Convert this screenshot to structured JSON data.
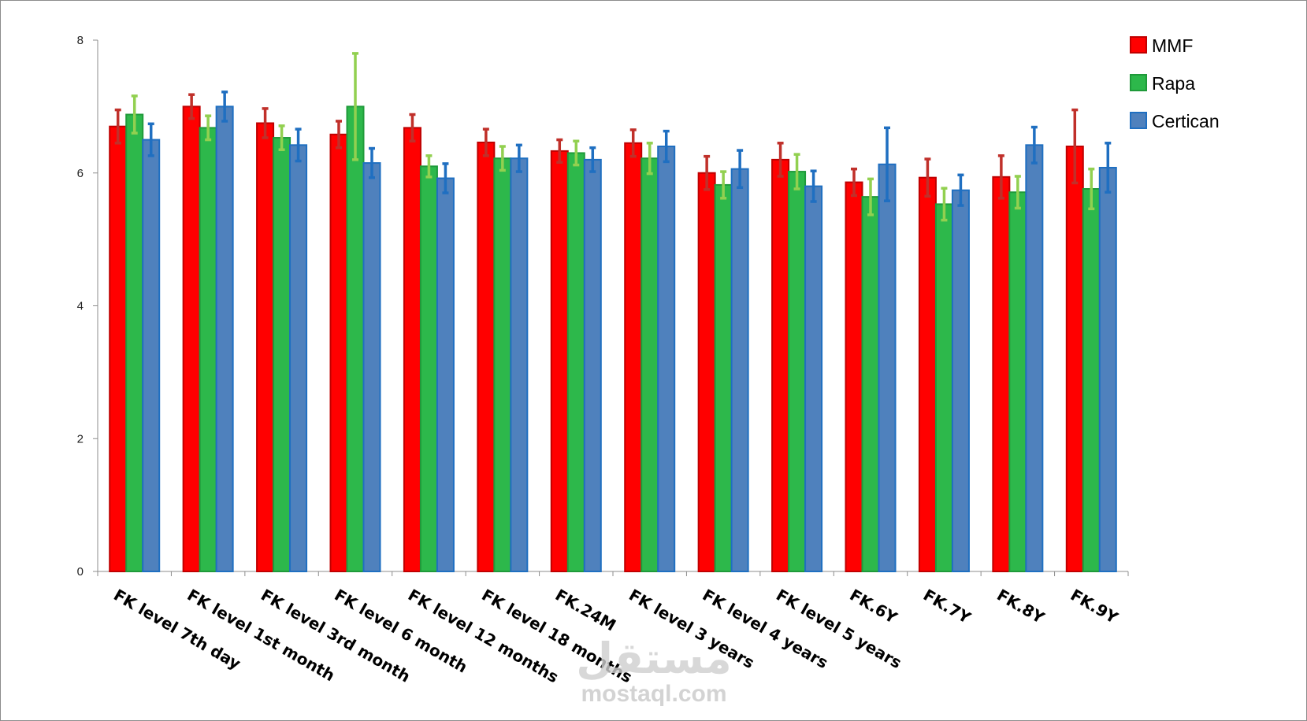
{
  "watermark": {
    "logo": "مستقل",
    "site": "mostaql.com"
  },
  "chart_data": {
    "type": "bar",
    "title": "",
    "xlabel": "",
    "ylabel": "",
    "ylim": [
      0,
      8
    ],
    "yticks": [
      0,
      2,
      4,
      6,
      8
    ],
    "grid": false,
    "legend_position": "top-right",
    "categories": [
      "FK level 7th day",
      "FK level 1st month",
      "FK level 3rd month",
      "FK level 6 month",
      "FK level 12 months",
      "FK level 18 months",
      "FK.24M",
      "FK level 3 years",
      "FK level 4 years",
      "FK level 5 years",
      "FK.6Y",
      "FK.7Y",
      "FK.8Y",
      "FK.9Y"
    ],
    "series": [
      {
        "name": "MMF",
        "color": "#ff0000",
        "border": "#c00000",
        "error_color": "#c0302a",
        "values": [
          6.7,
          7.0,
          6.75,
          6.58,
          6.68,
          6.46,
          6.33,
          6.45,
          6.0,
          6.2,
          5.86,
          5.93,
          5.94,
          6.4
        ],
        "errors": [
          0.25,
          0.18,
          0.22,
          0.2,
          0.2,
          0.2,
          0.17,
          0.2,
          0.25,
          0.25,
          0.2,
          0.28,
          0.32,
          0.55
        ]
      },
      {
        "name": "Rapa",
        "color": "#2db84b",
        "border": "#1f9a3a",
        "error_color": "#92d050",
        "values": [
          6.88,
          6.68,
          6.53,
          7.0,
          6.1,
          6.22,
          6.3,
          6.22,
          5.82,
          6.02,
          5.64,
          5.53,
          5.71,
          5.76
        ],
        "errors": [
          0.28,
          0.18,
          0.18,
          0.8,
          0.16,
          0.18,
          0.18,
          0.23,
          0.2,
          0.26,
          0.27,
          0.24,
          0.24,
          0.3
        ]
      },
      {
        "name": "Certican",
        "color": "#4f81bd",
        "border": "#1f6fc1",
        "error_color": "#1f6fc1",
        "values": [
          6.5,
          7.0,
          6.42,
          6.15,
          5.92,
          6.22,
          6.2,
          6.4,
          6.06,
          5.8,
          6.13,
          5.74,
          6.42,
          6.08
        ],
        "errors": [
          0.24,
          0.22,
          0.24,
          0.22,
          0.22,
          0.2,
          0.18,
          0.23,
          0.28,
          0.23,
          0.55,
          0.23,
          0.27,
          0.37
        ]
      }
    ]
  }
}
